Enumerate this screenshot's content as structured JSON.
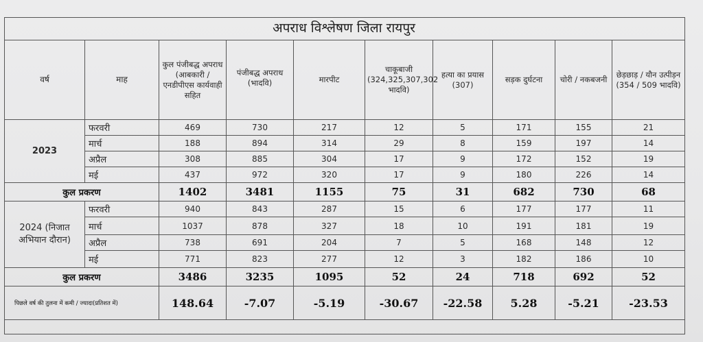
{
  "title": "अपराध विश्लेषण जिला रायपुर",
  "headers": {
    "year": "वर्ष",
    "month": "माह",
    "total_registered": "कुल पंजीबद्ध अपराध (आबकारी / एनडीपीएस कार्यवाही सहित",
    "registered_bnss": "पंजीबद्ध अपराध (भादवि)",
    "assault": "मारपीट",
    "stabbing": "चाकूबाजी (324,325,307,302 भादवि)",
    "attempt_murder": "हत्या का प्रयास (307)",
    "road_accident": "सड़क दुर्घटना",
    "theft": "चोरी / नकबजनी",
    "harassment": "छेड़छाड़ / यौन उत्पीड़न (354 / 509 भादवि)"
  },
  "year_2023": {
    "label": "2023",
    "rows": [
      {
        "month": "फरवरी",
        "values": [
          "469",
          "730",
          "217",
          "12",
          "5",
          "171",
          "155",
          "21"
        ]
      },
      {
        "month": "मार्च",
        "values": [
          "188",
          "894",
          "314",
          "29",
          "8",
          "159",
          "197",
          "14"
        ]
      },
      {
        "month": "अप्रैल",
        "values": [
          "308",
          "885",
          "304",
          "17",
          "9",
          "172",
          "152",
          "19"
        ]
      },
      {
        "month": "मई",
        "values": [
          "437",
          "972",
          "320",
          "17",
          "9",
          "180",
          "226",
          "14"
        ]
      }
    ],
    "total_label": "कुल प्रकरण",
    "totals": [
      "1402",
      "3481",
      "1155",
      "75",
      "31",
      "682",
      "730",
      "68"
    ]
  },
  "year_2024": {
    "label": "2024 (निजात अभियान दौरान)",
    "rows": [
      {
        "month": "फरवरी",
        "values": [
          "940",
          "843",
          "287",
          "15",
          "6",
          "177",
          "177",
          "11"
        ]
      },
      {
        "month": "मार्च",
        "values": [
          "1037",
          "878",
          "327",
          "18",
          "10",
          "191",
          "181",
          "19"
        ]
      },
      {
        "month": "अप्रैल",
        "values": [
          "738",
          "691",
          "204",
          "7",
          "5",
          "168",
          "148",
          "12"
        ]
      },
      {
        "month": "मई",
        "values": [
          "771",
          "823",
          "277",
          "12",
          "3",
          "182",
          "186",
          "10"
        ]
      }
    ],
    "total_label": "कुल प्रकरण",
    "totals": [
      "3486",
      "3235",
      "1095",
      "52",
      "24",
      "718",
      "692",
      "52"
    ]
  },
  "comparison": {
    "label": "पिछले वर्ष की तुलना में कमी / ज्यादा(प्रतिशत में)",
    "values": [
      "148.64",
      "-7.07",
      "-5.19",
      "-30.67",
      "-22.58",
      "5.28",
      "-5.21",
      "-23.53"
    ]
  }
}
